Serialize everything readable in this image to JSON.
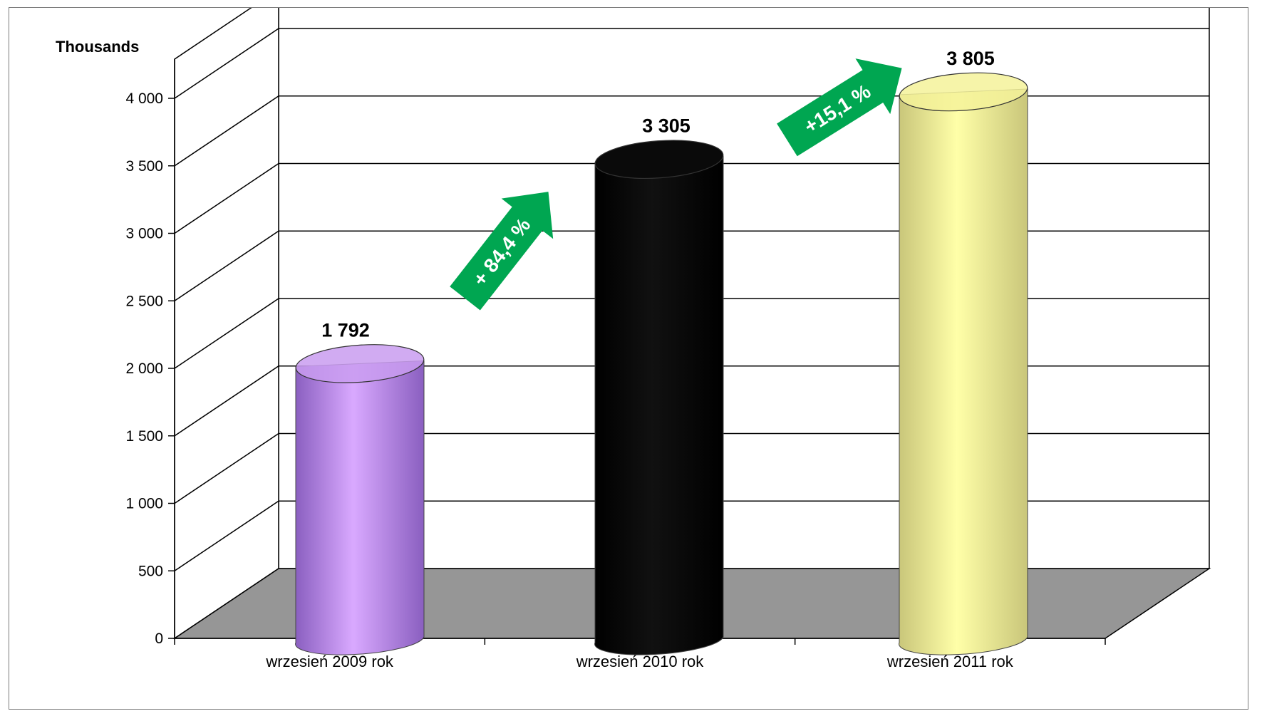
{
  "chart_data": {
    "type": "bar",
    "style": "3d-cylinder",
    "unit_label": "Thousands",
    "categories": [
      "wrzesień 2009 rok",
      "wrzesień 2010 rok",
      "wrzesień 2011 rok"
    ],
    "values": [
      1792,
      3305,
      3805
    ],
    "data_labels": [
      "1 792",
      "3 305",
      "3 805"
    ],
    "bar_colors": [
      "#c99cf0",
      "#0a0a0a",
      "#f4f29a"
    ],
    "yticks": [
      0,
      500,
      1000,
      1500,
      2000,
      2500,
      3000,
      3500,
      4000
    ],
    "ytick_labels": [
      "0",
      "500",
      "1 000",
      "1 500",
      "2 000",
      "2 500",
      "3 000",
      "3 500",
      "4 000"
    ],
    "ylim": [
      0,
      4000
    ],
    "grid": true,
    "floor_color": "#969696",
    "annotations": [
      {
        "text": "+ 84,4 %",
        "color": "#00a651",
        "between": [
          0,
          1
        ]
      },
      {
        "text": "+15,1 %",
        "color": "#00a651",
        "between": [
          1,
          2
        ]
      }
    ]
  }
}
